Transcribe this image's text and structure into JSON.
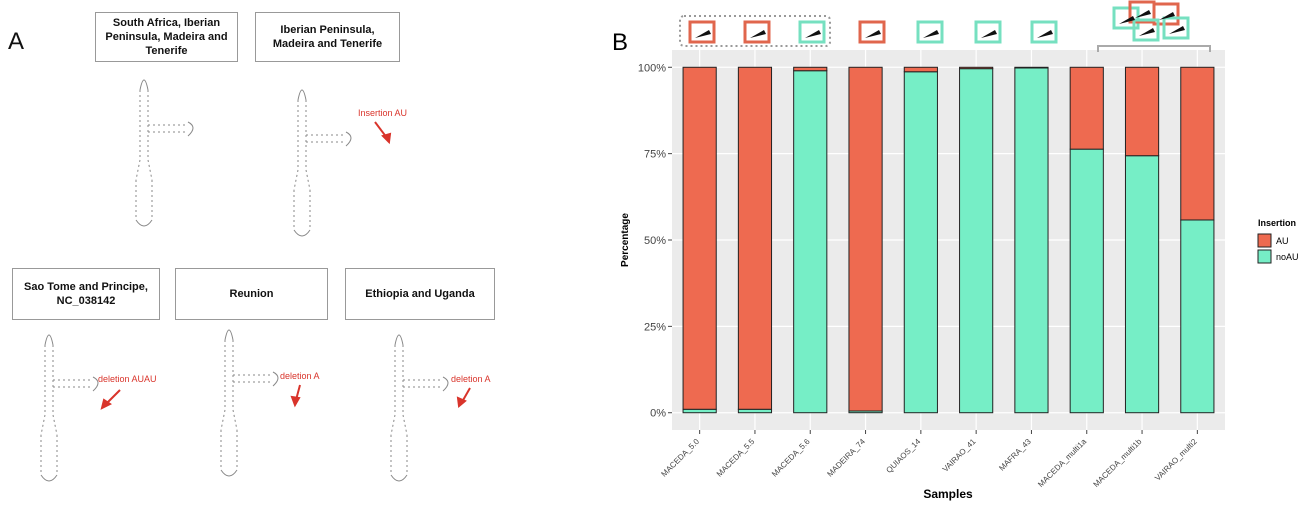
{
  "panel_a": {
    "label": "A",
    "structures": [
      {
        "title": "South Africa, Iberian Peninsula, Madeira and Tenerife"
      },
      {
        "title": "Iberian Peninsula, Madeira and Tenerife",
        "annotation": "Insertion AU"
      },
      {
        "title": "Sao Tome and Principe, NC_038142",
        "annotation": "deletion AUAU"
      },
      {
        "title": "Reunion",
        "annotation": "deletion A"
      },
      {
        "title": "Ethiopia and Uganda",
        "annotation": "deletion A"
      }
    ]
  },
  "chart_data": {
    "type": "bar",
    "stacked": true,
    "panel_label": "B",
    "xlabel": "Samples",
    "ylabel": "Percentage",
    "categories": [
      "MACEDA_5.0",
      "MACEDA_5.5",
      "MACEDA_5.6",
      "MADEIRA_74",
      "QUIAOS_14",
      "VAIRAO_41",
      "MAFRA_43",
      "MACEDA_multi1a",
      "MACEDA_multi1b",
      "VAIRAO_multi2"
    ],
    "series": [
      {
        "name": "noAU",
        "color": "#76EEC6",
        "values": [
          1,
          1,
          99,
          0.5,
          98.7,
          99.6,
          99.8,
          76.3,
          74.4,
          55.8
        ]
      },
      {
        "name": "AU",
        "color": "#EE6A50",
        "values": [
          99,
          99,
          1,
          99.5,
          1.3,
          0.4,
          0.2,
          23.7,
          25.6,
          44.2
        ]
      }
    ],
    "ylim": [
      -5,
      105
    ],
    "yticks": [
      {
        "value": 0,
        "label": "0%"
      },
      {
        "value": 25,
        "label": "25%"
      },
      {
        "value": 50,
        "label": "50%"
      },
      {
        "value": 75,
        "label": "75%"
      },
      {
        "value": 100,
        "label": "100%"
      }
    ],
    "grid": true,
    "legend": {
      "title": "Insertion",
      "position": "right",
      "order": [
        "AU",
        "noAU"
      ]
    }
  }
}
